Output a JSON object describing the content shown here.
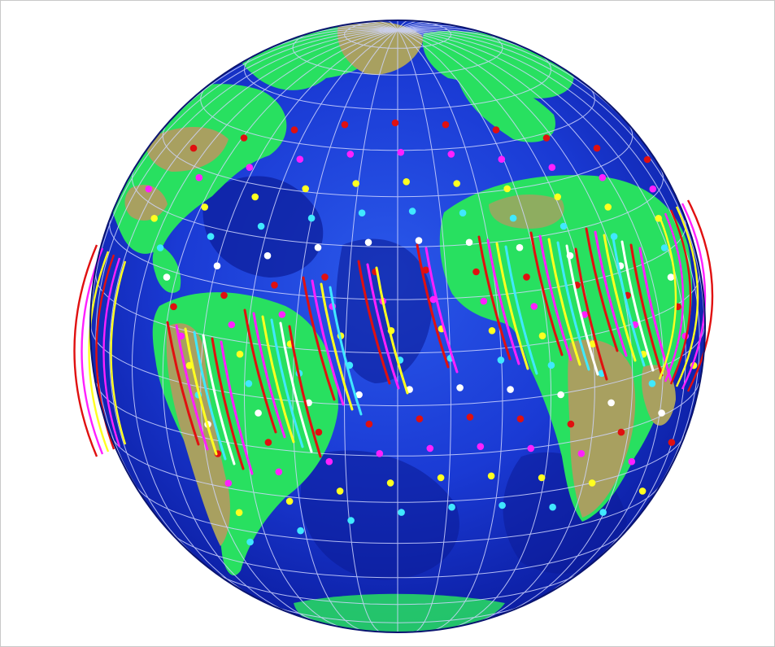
{
  "figure": {
    "ocean_colors": {
      "deep": "#0a1a8c",
      "mid": "#1d3cd6",
      "shallow": "#2f6ef0"
    },
    "land_colors": {
      "lowland": "#28e060",
      "highland": "#a8a060"
    },
    "grid_color": "#d0d6ff",
    "orbit_colors": [
      "#e01010",
      "#ff20ff",
      "#ffff20",
      "#40e8ff",
      "#ffffff"
    ]
  }
}
